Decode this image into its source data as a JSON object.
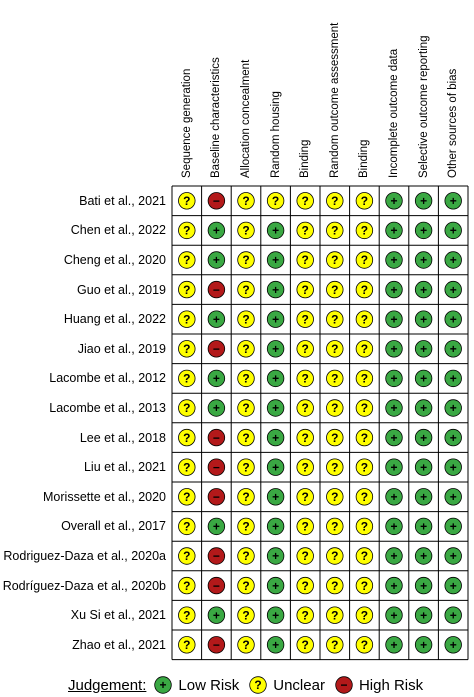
{
  "columns": [
    "Sequence generation",
    "Baseline characteristics",
    "Allocation concealment",
    "Random housing",
    "Binding",
    "Random outcome assessment",
    "Binding",
    "Incomplete outcome data",
    "Selective outcome reporting",
    "Other sources of bias"
  ],
  "studies": [
    {
      "name": "Bati et al., 2021",
      "ratings": [
        "?",
        "-",
        "?",
        "?",
        "?",
        "?",
        "?",
        "+",
        "+",
        "+"
      ]
    },
    {
      "name": "Chen et al., 2022",
      "ratings": [
        "?",
        "+",
        "?",
        "+",
        "?",
        "?",
        "?",
        "+",
        "+",
        "+"
      ]
    },
    {
      "name": "Cheng et al., 2020",
      "ratings": [
        "?",
        "+",
        "?",
        "+",
        "?",
        "?",
        "?",
        "+",
        "+",
        "+"
      ]
    },
    {
      "name": "Guo et al., 2019",
      "ratings": [
        "?",
        "-",
        "?",
        "+",
        "?",
        "?",
        "?",
        "+",
        "+",
        "+"
      ]
    },
    {
      "name": "Huang et al., 2022",
      "ratings": [
        "?",
        "+",
        "?",
        "+",
        "?",
        "?",
        "?",
        "+",
        "+",
        "+"
      ]
    },
    {
      "name": "Jiao et al., 2019",
      "ratings": [
        "?",
        "-",
        "?",
        "+",
        "?",
        "?",
        "?",
        "+",
        "+",
        "+"
      ]
    },
    {
      "name": "Lacombe et al., 2012",
      "ratings": [
        "?",
        "+",
        "?",
        "+",
        "?",
        "?",
        "?",
        "+",
        "+",
        "+"
      ]
    },
    {
      "name": "Lacombe et al., 2013",
      "ratings": [
        "?",
        "+",
        "?",
        "+",
        "?",
        "?",
        "?",
        "+",
        "+",
        "+"
      ]
    },
    {
      "name": "Lee et al., 2018",
      "ratings": [
        "?",
        "-",
        "?",
        "+",
        "?",
        "?",
        "?",
        "+",
        "+",
        "+"
      ]
    },
    {
      "name": "Liu et al., 2021",
      "ratings": [
        "?",
        "-",
        "?",
        "+",
        "?",
        "?",
        "?",
        "+",
        "+",
        "+"
      ]
    },
    {
      "name": "Morissette et al., 2020",
      "ratings": [
        "?",
        "-",
        "?",
        "+",
        "?",
        "?",
        "?",
        "+",
        "+",
        "+"
      ]
    },
    {
      "name": "Overall et al., 2017",
      "ratings": [
        "?",
        "+",
        "?",
        "+",
        "?",
        "?",
        "?",
        "+",
        "+",
        "+"
      ]
    },
    {
      "name": "Rodriguez-Daza et al., 2020a",
      "ratings": [
        "?",
        "-",
        "?",
        "+",
        "?",
        "?",
        "?",
        "+",
        "+",
        "+"
      ]
    },
    {
      "name": "Rodríguez-Daza et al., 2020b",
      "ratings": [
        "?",
        "-",
        "?",
        "+",
        "?",
        "?",
        "?",
        "+",
        "+",
        "+"
      ]
    },
    {
      "name": "Xu Si et al., 2021",
      "ratings": [
        "?",
        "+",
        "?",
        "+",
        "?",
        "?",
        "?",
        "+",
        "+",
        "+"
      ]
    },
    {
      "name": "Zhao et al., 2021",
      "ratings": [
        "?",
        "-",
        "?",
        "+",
        "?",
        "?",
        "?",
        "+",
        "+",
        "+"
      ]
    }
  ],
  "symbols": {
    "+": {
      "glyph": "+",
      "color": "#3aa843"
    },
    "?": {
      "glyph": "?",
      "color": "#ffff00"
    },
    "-": {
      "glyph": "−",
      "color": "#b3191a"
    }
  },
  "legend": {
    "title": "Judgement:",
    "items": [
      {
        "key": "+",
        "label": "Low Risk"
      },
      {
        "key": "?",
        "label": "Unclear"
      },
      {
        "key": "-",
        "label": "High Risk"
      }
    ]
  }
}
